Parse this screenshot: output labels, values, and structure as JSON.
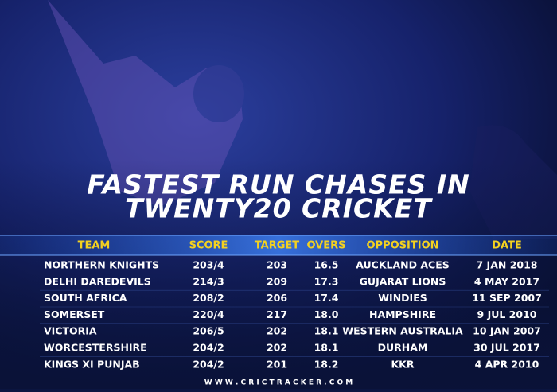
{
  "title": {
    "line1": "FASTEST RUN CHASES IN",
    "line2": "TWENTY20 CRICKET"
  },
  "table": {
    "header": [
      "TEAM",
      "SCORE",
      "TARGET",
      "OVERS",
      "OPPOSITION",
      "DATE"
    ],
    "rows": [
      [
        "NORTHERN KNIGHTS",
        "203/4",
        "203",
        "16.5",
        "AUCKLAND ACES",
        "7 JAN 2018"
      ],
      [
        "DELHI DAREDEVILS",
        "214/3",
        "209",
        "17.3",
        "GUJARAT LIONS",
        "4 MAY 2017"
      ],
      [
        "SOUTH AFRICA",
        "208/2",
        "206",
        "17.4",
        "WINDIES",
        "11 SEP 2007"
      ],
      [
        "SOMERSET",
        "220/4",
        "217",
        "18.0",
        "HAMPSHIRE",
        "9 JUL 2010"
      ],
      [
        "VICTORIA",
        "206/5",
        "202",
        "18.1",
        "WESTERN AUSTRALIA",
        "10 JAN 2007"
      ],
      [
        "WORCESTERSHIRE",
        "204/2",
        "202",
        "18.1",
        "DURHAM",
        "30 JUL 2017"
      ],
      [
        "KINGS XI PUNJAB",
        "204/2",
        "201",
        "18.2",
        "KKR",
        "4 APR 2010"
      ]
    ]
  },
  "footer": "W W W . C R I C T R A C K E R . C O M"
}
